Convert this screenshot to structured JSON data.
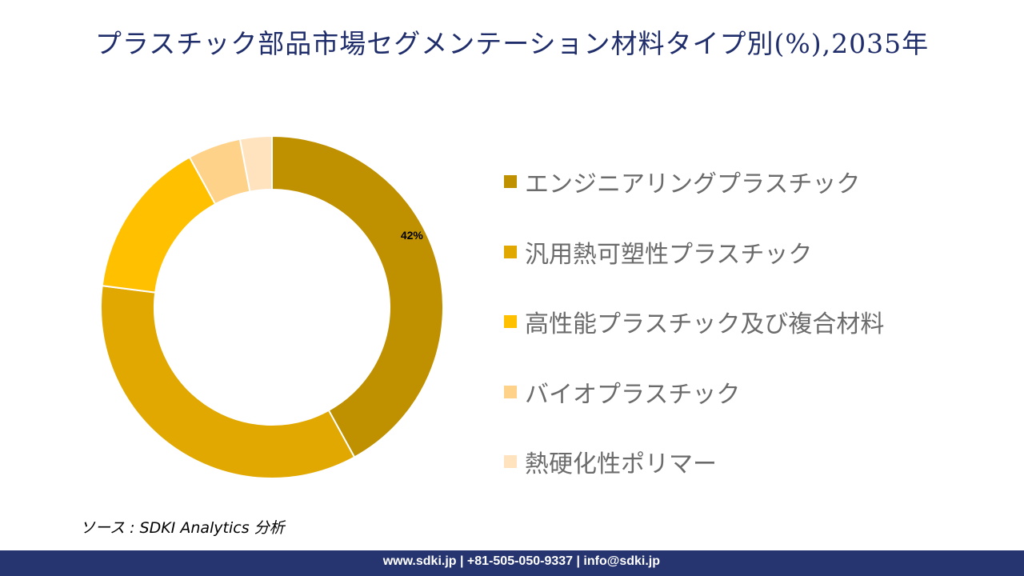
{
  "title": "プラスチック部品市場セグメンテーション材料タイプ別(%),2035年",
  "chart_data": {
    "type": "pie",
    "subtype": "donut",
    "title": "プラスチック部品市場セグメンテーション材料タイプ別(%),2035年",
    "categories": [
      "エンジニアリングプラスチック",
      "汎用熱可塑性プラスチック",
      "高性能プラスチック及び複合材料",
      "バイオプラスチック",
      "熱硬化性ポリマー"
    ],
    "values": [
      42,
      35,
      15,
      5,
      3
    ],
    "data_labels": [
      "42%",
      "",
      "",
      "",
      ""
    ],
    "colors": [
      "#BF9000",
      "#E0A800",
      "#FFC000",
      "#FFD28A",
      "#FFE3BE"
    ],
    "legend_position": "right"
  },
  "source": "ソース : SDKI Analytics 分析",
  "footer": "www.sdki.jp | +81-505-050-9337 | info@sdki.jp"
}
